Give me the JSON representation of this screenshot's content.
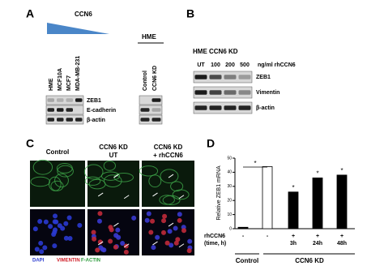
{
  "panel_a": {
    "letter": "A",
    "gradient_label": "CCN6",
    "lanes": [
      "HME",
      "MCF10A",
      "MCF7",
      "MDA-MB-231"
    ],
    "hme_title": "HME",
    "hme_lanes": [
      "Control",
      "CCN6 KD"
    ],
    "blots": [
      "ZEB1",
      "E-cadherin",
      "β-actin"
    ]
  },
  "panel_b": {
    "letter": "B",
    "title": "HME CCN6 KD",
    "doses": [
      "UT",
      "100",
      "200",
      "500"
    ],
    "unit": "ng/ml rhCCN6",
    "blots": [
      "ZEB1",
      "Vimentin",
      "β-actin"
    ]
  },
  "panel_c": {
    "letter": "C",
    "columns": [
      [
        "Control"
      ],
      [
        "CCN6 KD",
        "UT"
      ],
      [
        "CCN6 KD",
        "+ rhCCN6"
      ]
    ],
    "stains": [
      "DAPI",
      "VIMENTIN",
      "F-ACTIN"
    ]
  },
  "chart_data": {
    "letter": "D",
    "type": "bar",
    "ylabel": "Relative ZEB1 mRNA",
    "values": [
      1,
      44,
      26,
      36,
      38
    ],
    "colors": [
      "#000000",
      "#ffffff",
      "#000000",
      "#000000",
      "#000000"
    ],
    "ylim": [
      0,
      50
    ],
    "yticks": [
      0,
      10,
      20,
      30,
      40,
      50
    ],
    "row_label": [
      "rhCCN6",
      "(time, h)"
    ],
    "treatment": [
      "-",
      "-",
      "+",
      "+",
      "+"
    ],
    "time": [
      null,
      null,
      "3h",
      "24h",
      "48h"
    ],
    "groups": [
      "Control",
      "CCN6 KD"
    ],
    "annotations": [
      "*",
      "*",
      "*",
      "*"
    ]
  }
}
